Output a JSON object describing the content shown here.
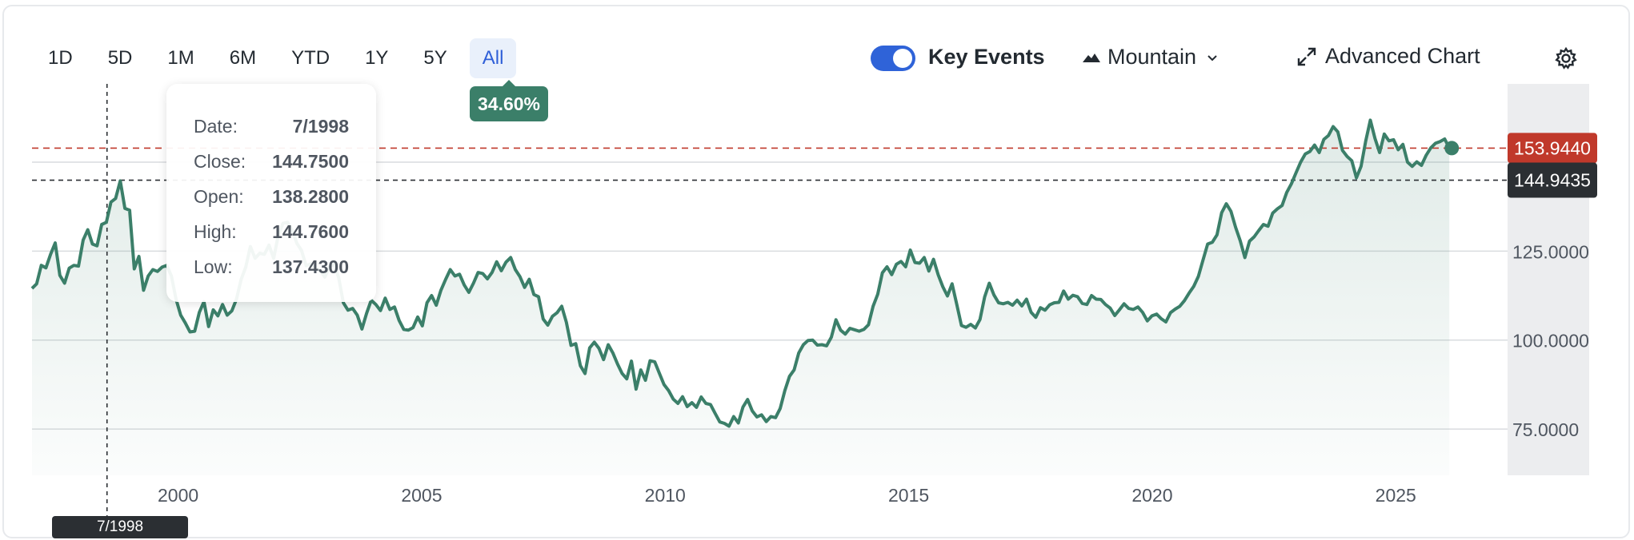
{
  "range_buttons": [
    "1D",
    "5D",
    "1M",
    "6M",
    "YTD",
    "1Y",
    "5Y",
    "All"
  ],
  "active_range": "All",
  "change_badge": "34.60%",
  "key_events": {
    "label": "Key Events",
    "enabled": true
  },
  "chart_style": {
    "label": "Mountain"
  },
  "advanced_chart_label": "Advanced Chart",
  "tooltip": {
    "rows": [
      {
        "label": "Date:",
        "value": "7/1998"
      },
      {
        "label": "Close:",
        "value": "144.7500"
      },
      {
        "label": "Open:",
        "value": "138.2800"
      },
      {
        "label": "High:",
        "value": "144.7600"
      },
      {
        "label": "Low:",
        "value": "137.4300"
      }
    ]
  },
  "crosshair_date_label": "7/1998",
  "colors": {
    "line": "#3b7f69",
    "active_range": "#2f5fd8",
    "current_price": "#c0392b",
    "crosshair_price": "#2b2f33",
    "toggle": "#2f63d8"
  },
  "chart_data": {
    "type": "area",
    "x_start": 1997.0,
    "x_end": 2026.1,
    "xlim": [
      1997.0,
      2029.3
    ],
    "ylim": [
      62,
      172
    ],
    "x_ticks": [
      2000,
      2005,
      2010,
      2015,
      2020,
      2025
    ],
    "x_tick_labels": [
      "2000",
      "2005",
      "2010",
      "2015",
      "2020",
      "2025"
    ],
    "y_ticks": [
      75,
      100,
      125
    ],
    "y_tick_labels": [
      "75.0000",
      "100.0000",
      "125.0000"
    ],
    "grid": true,
    "current_price": {
      "value": 153.944,
      "label": "153.9440"
    },
    "crosshair": {
      "x": 1998.54,
      "value": 144.9435,
      "label": "144.9435"
    },
    "series": [
      {
        "values": [
          114.5,
          115.8,
          121.0,
          120.3,
          124.1,
          127.3,
          118.2,
          116.0,
          120.2,
          121.0,
          120.8,
          128.1,
          131.0,
          127.0,
          126.5,
          132.5,
          133.1,
          138.8,
          139.8,
          144.75,
          137.0,
          136.5,
          120.0,
          123.5,
          114.0,
          118.0,
          119.8,
          119.3,
          120.5,
          121.0,
          118.0,
          111.5,
          107.0,
          104.8,
          102.3,
          102.5,
          107.8,
          110.8,
          103.8,
          108.5,
          106.8,
          110.0,
          107.0,
          108.2,
          111.5,
          117.0,
          120.5,
          126.3,
          123.0,
          124.4,
          124.1,
          126.7,
          123.0,
          129.5,
          132.8,
          133.1,
          130.8,
          127.2,
          125.2,
          120.9,
          121.4,
          120.1,
          119.6,
          117.7,
          120.5,
          121.4,
          117.5,
          110.5,
          108.4,
          108.9,
          107.0,
          103.1,
          107.5,
          111.2,
          110.0,
          108.3,
          111.8,
          108.6,
          109.3,
          105.5,
          103.0,
          102.8,
          103.5,
          106.5,
          104.0,
          110.5,
          112.5,
          109.8,
          114.0,
          117.0,
          119.8,
          118.0,
          118.5,
          115.5,
          113.4,
          116.0,
          119.0,
          118.7,
          117.2,
          119.0,
          122.0,
          119.5,
          121.9,
          123.2,
          119.8,
          117.8,
          114.8,
          117.1,
          112.8,
          112.2,
          105.9,
          104.2,
          106.7,
          107.7,
          109.5,
          105.0,
          98.5,
          99.0,
          92.8,
          90.6,
          97.8,
          99.4,
          97.7,
          94.5,
          98.7,
          96.4,
          93.3,
          90.6,
          89.1,
          94.1,
          86.2,
          91.6,
          88.7,
          94.2,
          93.9,
          90.7,
          87.5,
          85.8,
          83.4,
          82.2,
          84.1,
          81.3,
          82.4,
          81.1,
          84.0,
          82.2,
          81.9,
          79.4,
          77.0,
          76.6,
          75.8,
          78.5,
          76.7,
          81.2,
          83.3,
          80.1,
          78.4,
          79.0,
          77.1,
          78.5,
          78.2,
          80.8,
          85.8,
          89.8,
          91.6,
          96.4,
          98.7,
          99.9,
          100.0,
          98.6,
          98.7,
          98.4,
          100.8,
          105.7,
          102.8,
          101.7,
          103.3,
          102.9,
          102.5,
          103.0,
          104.3,
          109.5,
          112.9,
          118.9,
          120.6,
          118.4,
          121.3,
          122.1,
          120.6,
          125.3,
          121.8,
          121.6,
          123.2,
          119.4,
          122.7,
          118.4,
          115.0,
          112.4,
          115.8,
          110.0,
          104.1,
          103.6,
          104.4,
          103.4,
          105.8,
          112.1,
          116.0,
          112.7,
          110.5,
          110.2,
          110.6,
          109.8,
          111.2,
          109.6,
          111.5,
          107.8,
          106.4,
          109.1,
          108.4,
          109.9,
          110.5,
          110.6,
          113.8,
          111.5,
          112.6,
          112.2,
          110.3,
          110.0,
          112.5,
          111.5,
          111.4,
          110.0,
          109.0,
          106.9,
          108.5,
          110.2,
          108.9,
          108.6,
          109.3,
          107.8,
          105.4,
          106.8,
          107.3,
          106.0,
          105.1,
          107.7,
          108.7,
          109.5,
          111.1,
          113.2,
          115.1,
          117.9,
          122.5,
          127.0,
          127.5,
          129.6,
          135.8,
          138.3,
          136.2,
          131.7,
          127.9,
          123.2,
          127.8,
          129.0,
          130.8,
          132.5,
          132.0,
          135.7,
          136.9,
          137.8,
          141.5,
          143.9,
          147.0,
          150.0,
          152.3,
          153.0,
          154.8,
          152.7,
          156.4,
          157.5,
          160.0,
          158.5,
          153.3,
          151.6,
          150.4,
          145.6,
          148.8,
          155.9,
          161.8,
          156.7,
          152.7,
          157.9,
          156.0,
          156.3,
          153.5,
          155.0,
          150.0,
          148.8,
          150.1,
          149.1,
          151.9,
          154.0,
          155.3,
          155.8,
          156.5,
          153.944
        ]
      }
    ]
  }
}
